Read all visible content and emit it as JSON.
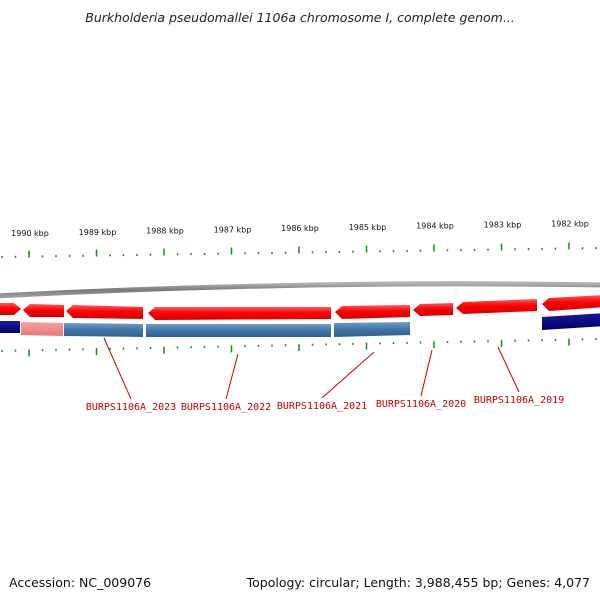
{
  "title": "Burkholderia pseudomallei 1106a chromosome I, complete genom...",
  "footer": {
    "accession": "Accession: NC_009076",
    "topology": "Topology: circular; Length: 3,988,455 bp; Genes: 4,077"
  },
  "colors": {
    "forward_gene": "#ff0000",
    "forward_gene_light": "#ff6f6f",
    "reverse_cds": "#3f74a6",
    "reverse_cds_light": "#6d9dc9",
    "navy_feature": "#00007a",
    "pale_feature": "#f08c8c",
    "backbone": "#8a8a8a",
    "tick": "#1a8a1a",
    "label": "#cc0000"
  },
  "scale_labels": [
    {
      "text": "1990 kbp",
      "kbp": 1990
    },
    {
      "text": "1989 kbp",
      "kbp": 1989
    },
    {
      "text": "1988 kbp",
      "kbp": 1988
    },
    {
      "text": "1987 kbp",
      "kbp": 1987
    },
    {
      "text": "1986 kbp",
      "kbp": 1986
    },
    {
      "text": "1985 kbp",
      "kbp": 1985
    },
    {
      "text": "1984 kbp",
      "kbp": 1984
    },
    {
      "text": "1983 kbp",
      "kbp": 1983
    },
    {
      "text": "1982 kbp",
      "kbp": 1982
    }
  ],
  "gene_labels": [
    {
      "text": "BURPS1106A_2023"
    },
    {
      "text": "BURPS1106A_2022"
    },
    {
      "text": "BURPS1106A_2021"
    },
    {
      "text": "BURPS1106A_2020"
    },
    {
      "text": "BURPS1106A_2019"
    }
  ]
}
